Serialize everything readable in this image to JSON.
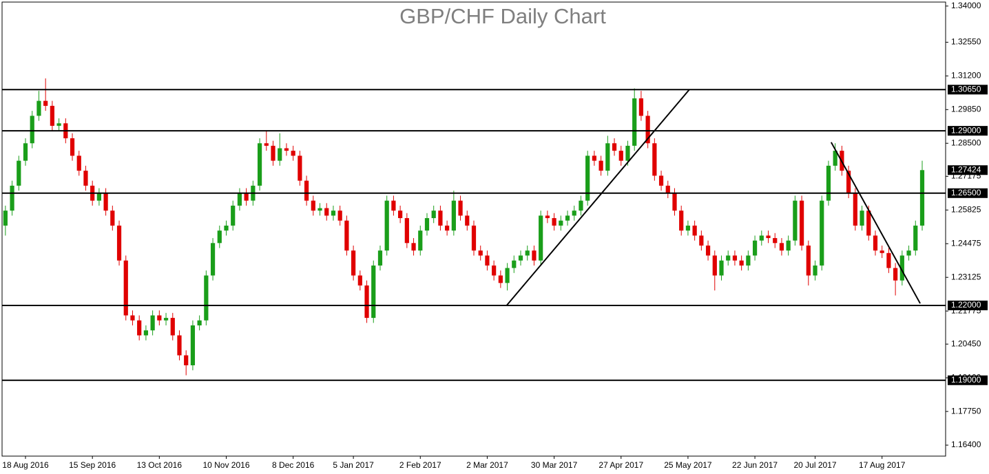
{
  "chart_data": {
    "type": "candlestick",
    "title": "GBP/CHF Daily Chart",
    "up_color": "#1a9e1a",
    "down_color": "#e00000",
    "ylim": [
      1.1596,
      1.3416
    ],
    "xlim": [
      -0.5,
      140.5
    ],
    "yticks": [
      {
        "value": 1.34,
        "label": "1.34000"
      },
      {
        "value": 1.3255,
        "label": "1.32550"
      },
      {
        "value": 1.312,
        "label": "1.31200"
      },
      {
        "value": 1.2985,
        "label": "1.29850"
      },
      {
        "value": 1.285,
        "label": "1.28500"
      },
      {
        "value": 1.27175,
        "label": "1.27175"
      },
      {
        "value": 1.25825,
        "label": "1.25825"
      },
      {
        "value": 1.24475,
        "label": "1.24475"
      },
      {
        "value": 1.23125,
        "label": "1.23125"
      },
      {
        "value": 1.21775,
        "label": "1.21775"
      },
      {
        "value": 1.2045,
        "label": "1.20450"
      },
      {
        "value": 1.191,
        "label": "1.19100"
      },
      {
        "value": 1.1775,
        "label": "1.17750"
      },
      {
        "value": 1.164,
        "label": "1.16400"
      }
    ],
    "xticks": [
      {
        "value": 3,
        "label": "18 Aug 2016"
      },
      {
        "value": 13,
        "label": "15 Sep 2016"
      },
      {
        "value": 23,
        "label": "13 Oct 2016"
      },
      {
        "value": 33,
        "label": "10 Nov 2016"
      },
      {
        "value": 43,
        "label": "8 Dec 2016"
      },
      {
        "value": 52,
        "label": "5 Jan 2017"
      },
      {
        "value": 62,
        "label": "2 Feb 2017"
      },
      {
        "value": 72,
        "label": "2 Mar 2017"
      },
      {
        "value": 82,
        "label": "30 Mar 2017"
      },
      {
        "value": 92,
        "label": "27 Apr 2017"
      },
      {
        "value": 102,
        "label": "25 May 2017"
      },
      {
        "value": 112,
        "label": "22 Jun 2017"
      },
      {
        "value": 121,
        "label": "20 Jul 2017"
      },
      {
        "value": 131,
        "label": "17 Aug 2017"
      }
    ],
    "levels": [
      {
        "value": 1.3065,
        "label": "1.30650"
      },
      {
        "value": 1.29,
        "label": "1.29000"
      },
      {
        "value": 1.265,
        "label": "1.26500"
      },
      {
        "value": 1.22,
        "label": "1.22000"
      },
      {
        "value": 1.19,
        "label": "1.19000"
      }
    ],
    "current_price": {
      "value": 1.27424,
      "label": "1.27424"
    },
    "trendlines": [
      {
        "x": [
          74.9,
          102.2
        ],
        "y": [
          1.22,
          1.3065
        ]
      },
      {
        "x": [
          123.4,
          136.7
        ],
        "y": [
          1.2854,
          1.2208
        ]
      }
    ],
    "open": [
      1.252,
      1.258,
      1.268,
      1.278,
      1.285,
      1.296,
      1.302,
      1.3,
      1.292,
      1.293,
      1.287,
      1.28,
      1.274,
      1.268,
      1.262,
      1.265,
      1.258,
      1.252,
      1.238,
      1.216,
      1.214,
      1.208,
      1.21,
      1.216,
      1.214,
      1.215,
      1.208,
      1.2,
      1.196,
      1.212,
      1.214,
      1.232,
      1.245,
      1.25,
      1.252,
      1.26,
      1.265,
      1.262,
      1.268,
      1.285,
      1.284,
      1.278,
      1.283,
      1.282,
      1.28,
      1.27,
      1.262,
      1.258,
      1.259,
      1.256,
      1.258,
      1.254,
      1.242,
      1.232,
      1.228,
      1.215,
      1.236,
      1.242,
      1.262,
      1.258,
      1.255,
      1.245,
      1.242,
      1.25,
      1.255,
      1.258,
      1.252,
      1.25,
      1.262,
      1.256,
      1.252,
      1.242,
      1.24,
      1.236,
      1.232,
      1.229,
      1.235,
      1.238,
      1.24,
      1.242,
      1.238,
      1.256,
      1.255,
      1.252,
      1.254,
      1.256,
      1.258,
      1.262,
      1.28,
      1.278,
      1.274,
      1.285,
      1.282,
      1.278,
      1.284,
      1.303,
      1.296,
      1.285,
      1.272,
      1.268,
      1.265,
      1.258,
      1.25,
      1.252,
      1.248,
      1.244,
      1.24,
      1.232,
      1.238,
      1.24,
      1.238,
      1.236,
      1.24,
      1.246,
      1.248,
      1.247,
      1.245,
      1.242,
      1.246,
      1.262,
      1.244,
      1.232,
      1.236,
      1.262,
      1.276,
      1.282,
      1.274,
      1.265,
      1.252,
      1.258,
      1.248,
      1.242,
      1.241,
      1.235,
      1.23,
      1.24,
      1.242,
      1.252
    ],
    "high": [
      1.26,
      1.27,
      1.28,
      1.287,
      1.298,
      1.306,
      1.311,
      1.302,
      1.295,
      1.295,
      1.289,
      1.282,
      1.276,
      1.27,
      1.267,
      1.267,
      1.26,
      1.254,
      1.24,
      1.218,
      1.216,
      1.212,
      1.218,
      1.218,
      1.217,
      1.217,
      1.21,
      1.202,
      1.214,
      1.216,
      1.234,
      1.247,
      1.252,
      1.254,
      1.262,
      1.267,
      1.267,
      1.27,
      1.287,
      1.29,
      1.286,
      1.289,
      1.285,
      1.284,
      1.282,
      1.272,
      1.264,
      1.261,
      1.261,
      1.26,
      1.26,
      1.256,
      1.244,
      1.234,
      1.23,
      1.238,
      1.244,
      1.264,
      1.264,
      1.26,
      1.257,
      1.247,
      1.252,
      1.257,
      1.26,
      1.26,
      1.254,
      1.266,
      1.264,
      1.258,
      1.254,
      1.244,
      1.242,
      1.238,
      1.234,
      1.237,
      1.24,
      1.242,
      1.244,
      1.244,
      1.258,
      1.258,
      1.257,
      1.256,
      1.258,
      1.26,
      1.264,
      1.282,
      1.282,
      1.28,
      1.288,
      1.287,
      1.284,
      1.286,
      1.307,
      1.306,
      1.298,
      1.287,
      1.274,
      1.27,
      1.267,
      1.26,
      1.254,
      1.254,
      1.25,
      1.246,
      1.242,
      1.24,
      1.242,
      1.242,
      1.24,
      1.242,
      1.248,
      1.25,
      1.25,
      1.249,
      1.247,
      1.248,
      1.264,
      1.264,
      1.246,
      1.238,
      1.264,
      1.278,
      1.285,
      1.284,
      1.276,
      1.267,
      1.26,
      1.26,
      1.25,
      1.244,
      1.243,
      1.237,
      1.242,
      1.244,
      1.254,
      1.278
    ],
    "low": [
      1.248,
      1.256,
      1.266,
      1.276,
      1.283,
      1.294,
      1.298,
      1.29,
      1.29,
      1.285,
      1.278,
      1.272,
      1.266,
      1.26,
      1.26,
      1.256,
      1.25,
      1.236,
      1.214,
      1.212,
      1.206,
      1.206,
      1.208,
      1.212,
      1.212,
      1.206,
      1.198,
      1.192,
      1.194,
      1.21,
      1.212,
      1.23,
      1.243,
      1.248,
      1.25,
      1.258,
      1.26,
      1.26,
      1.266,
      1.282,
      1.276,
      1.276,
      1.28,
      1.278,
      1.268,
      1.26,
      1.256,
      1.256,
      1.254,
      1.254,
      1.252,
      1.24,
      1.23,
      1.226,
      1.213,
      1.213,
      1.234,
      1.24,
      1.256,
      1.253,
      1.243,
      1.24,
      1.24,
      1.248,
      1.253,
      1.25,
      1.248,
      1.248,
      1.254,
      1.25,
      1.24,
      1.238,
      1.234,
      1.23,
      1.227,
      1.226,
      1.233,
      1.236,
      1.238,
      1.236,
      1.236,
      1.253,
      1.25,
      1.25,
      1.252,
      1.254,
      1.256,
      1.26,
      1.276,
      1.272,
      1.272,
      1.28,
      1.276,
      1.276,
      1.282,
      1.294,
      1.283,
      1.27,
      1.266,
      1.263,
      1.256,
      1.248,
      1.248,
      1.246,
      1.242,
      1.238,
      1.226,
      1.23,
      1.236,
      1.236,
      1.234,
      1.234,
      1.238,
      1.244,
      1.245,
      1.243,
      1.24,
      1.24,
      1.244,
      1.242,
      1.228,
      1.23,
      1.234,
      1.26,
      1.274,
      1.272,
      1.263,
      1.25,
      1.25,
      1.246,
      1.24,
      1.239,
      1.233,
      1.224,
      1.228,
      1.238,
      1.24,
      1.25
    ],
    "close": [
      1.258,
      1.268,
      1.278,
      1.285,
      1.296,
      1.302,
      1.3,
      1.292,
      1.293,
      1.287,
      1.28,
      1.274,
      1.268,
      1.262,
      1.265,
      1.258,
      1.252,
      1.238,
      1.216,
      1.214,
      1.208,
      1.21,
      1.216,
      1.214,
      1.215,
      1.208,
      1.2,
      1.196,
      1.212,
      1.214,
      1.232,
      1.245,
      1.25,
      1.252,
      1.26,
      1.265,
      1.262,
      1.268,
      1.285,
      1.284,
      1.278,
      1.283,
      1.282,
      1.28,
      1.27,
      1.262,
      1.258,
      1.259,
      1.256,
      1.258,
      1.254,
      1.242,
      1.232,
      1.228,
      1.215,
      1.236,
      1.242,
      1.262,
      1.258,
      1.255,
      1.245,
      1.242,
      1.25,
      1.255,
      1.258,
      1.252,
      1.25,
      1.262,
      1.256,
      1.252,
      1.242,
      1.24,
      1.236,
      1.232,
      1.229,
      1.235,
      1.238,
      1.24,
      1.242,
      1.238,
      1.256,
      1.255,
      1.252,
      1.254,
      1.256,
      1.258,
      1.262,
      1.28,
      1.278,
      1.274,
      1.285,
      1.282,
      1.278,
      1.284,
      1.303,
      1.296,
      1.285,
      1.272,
      1.268,
      1.265,
      1.258,
      1.25,
      1.252,
      1.248,
      1.244,
      1.24,
      1.232,
      1.238,
      1.24,
      1.238,
      1.236,
      1.24,
      1.246,
      1.248,
      1.247,
      1.245,
      1.242,
      1.246,
      1.262,
      1.244,
      1.232,
      1.236,
      1.262,
      1.276,
      1.282,
      1.274,
      1.265,
      1.252,
      1.258,
      1.248,
      1.242,
      1.241,
      1.235,
      1.23,
      1.24,
      1.242,
      1.252,
      1.27424
    ]
  }
}
